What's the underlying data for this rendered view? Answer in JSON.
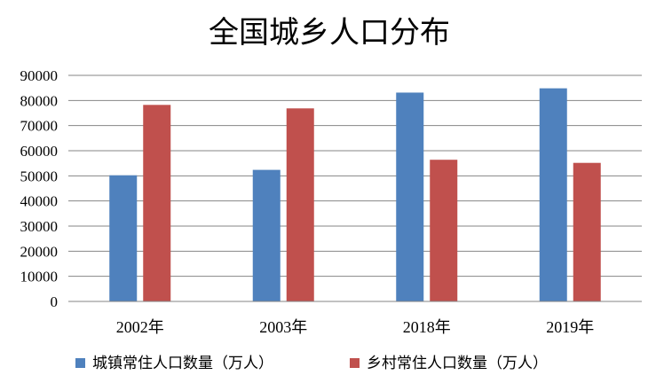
{
  "chart_data": {
    "type": "bar",
    "title": "全国城乡人口分布",
    "categories": [
      "2002年",
      "2003年",
      "2018年",
      "2019年"
    ],
    "series": [
      {
        "name": "城镇常住人口数量（万人）",
        "values": [
          50212,
          52376,
          83137,
          84843
        ],
        "color": "#4F81BD"
      },
      {
        "name": "乡村常住人口数量（万人）",
        "values": [
          78241,
          76851,
          56401,
          55162
        ],
        "color": "#C0504D"
      }
    ],
    "y_ticks": [
      "0",
      "10000",
      "20000",
      "30000",
      "40000",
      "50000",
      "60000",
      "70000",
      "80000",
      "90000"
    ],
    "ylim": [
      0,
      90000
    ],
    "grid": true,
    "legend_position": "bottom"
  }
}
